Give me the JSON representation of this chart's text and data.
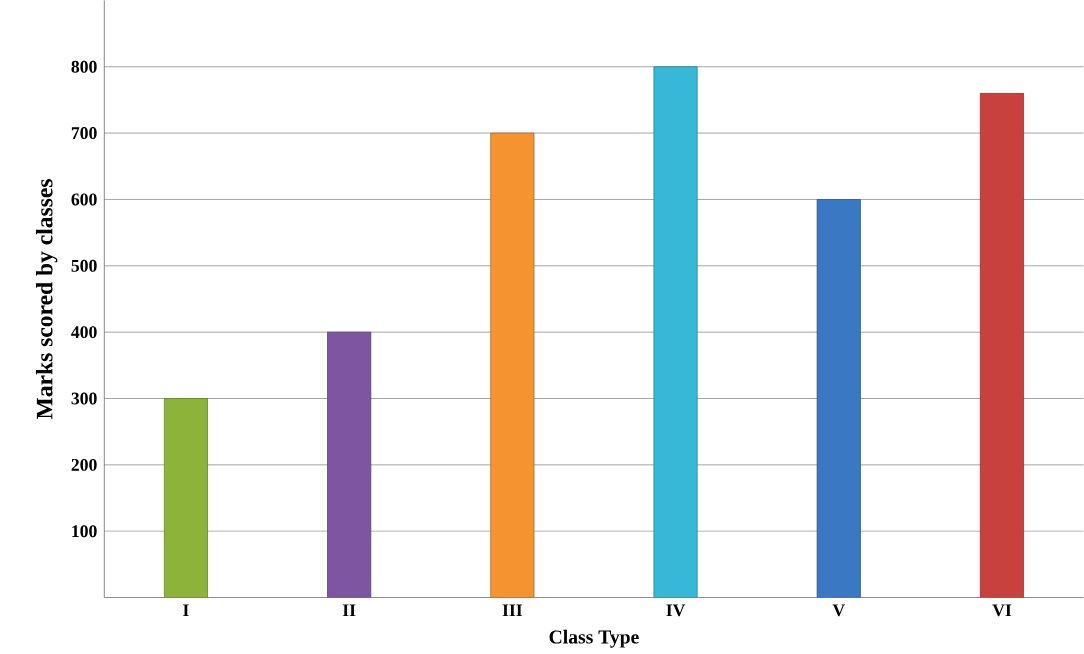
{
  "chart_data": {
    "type": "bar",
    "xlabel": "Class Type",
    "ylabel": "Marks scored by classes",
    "categories": [
      "I",
      "II",
      "III",
      "IV",
      "V",
      "VI"
    ],
    "values": [
      300,
      400,
      700,
      800,
      600,
      760
    ],
    "colors": [
      "#8db33a",
      "#7d55a0",
      "#f59331",
      "#36b8d6",
      "#3a78c4",
      "#c9413f"
    ],
    "ylim": [
      0,
      900
    ],
    "yticks": [
      100,
      200,
      300,
      400,
      500,
      600,
      700,
      800
    ],
    "grid": "y"
  }
}
